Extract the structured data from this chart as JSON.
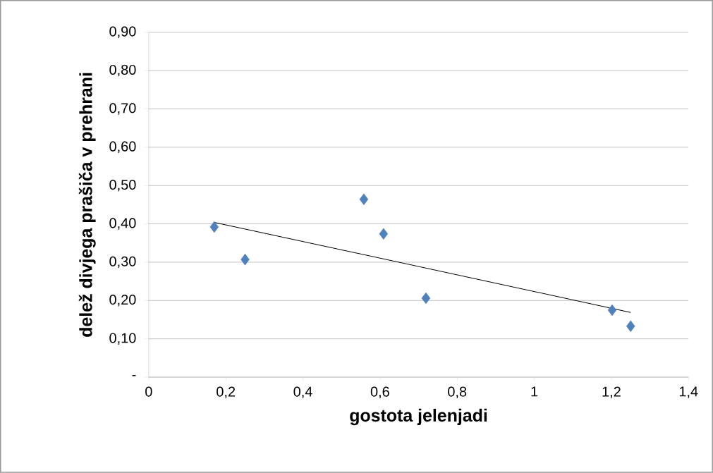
{
  "chart_data": {
    "type": "scatter",
    "xlabel": "gostota jelenjadi",
    "ylabel": "delež divjega prašiča v prehrani",
    "xlim": [
      0,
      1.4
    ],
    "ylim": [
      0,
      0.9
    ],
    "xticks": [
      0,
      {
        "value": 0.2,
        "label": "0,2"
      },
      {
        "value": 0.4,
        "label": "0,4"
      },
      {
        "value": 0.6,
        "label": "0,6"
      },
      {
        "value": 0.8,
        "label": "0,8"
      },
      1,
      {
        "value": 1.2,
        "label": "1,2"
      },
      {
        "value": 1.4,
        "label": "1,4"
      }
    ],
    "yticks": [
      {
        "value": 0,
        "label": "-"
      },
      {
        "value": 0.1,
        "label": "0,10"
      },
      {
        "value": 0.2,
        "label": "0,20"
      },
      {
        "value": 0.3,
        "label": "0,30"
      },
      {
        "value": 0.4,
        "label": "0,40"
      },
      {
        "value": 0.5,
        "label": "0,50"
      },
      {
        "value": 0.6,
        "label": "0,60"
      },
      {
        "value": 0.7,
        "label": "0,70"
      },
      {
        "value": 0.8,
        "label": "0,80"
      },
      {
        "value": 0.9,
        "label": "0,90"
      }
    ],
    "grid": "y",
    "marker": "diamond",
    "series": [
      {
        "color": "#4f81bd",
        "x": [
          0.17,
          0.25,
          0.558,
          0.609,
          0.719,
          1.202,
          1.25
        ],
        "values": [
          0.392,
          0.307,
          0.464,
          0.374,
          0.206,
          0.175,
          0.133
        ]
      },
      {
        "type": "line",
        "color": "#000000",
        "marker": "none",
        "x": [
          0.17,
          1.25
        ],
        "values": [
          0.404,
          0.169
        ]
      }
    ]
  }
}
